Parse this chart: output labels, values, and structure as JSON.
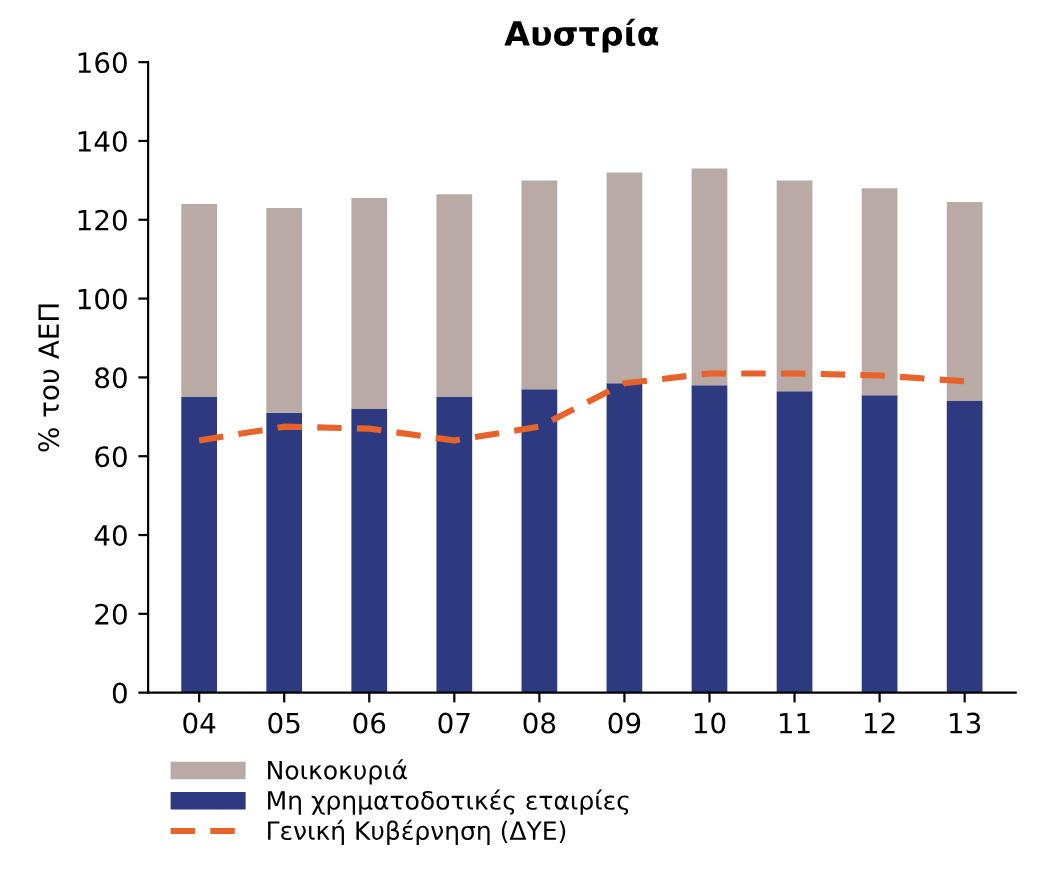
{
  "chart_data": {
    "type": "bar",
    "title": "Αυστρία",
    "ylabel": "% του ΑΕΠ",
    "stacked": true,
    "categories": [
      "04",
      "05",
      "06",
      "07",
      "08",
      "09",
      "10",
      "11",
      "12",
      "13"
    ],
    "series": [
      {
        "name": "Μη χρηματοδοτικές εταιρίες",
        "color": "#2e3a80",
        "values": [
          75,
          71,
          72,
          75,
          77,
          78.5,
          78,
          76.5,
          75.5,
          74
        ]
      },
      {
        "name": "Νοικοκυριά",
        "color": "#b9aaa5",
        "values": [
          49,
          52,
          53.5,
          51.5,
          53,
          53.5,
          55,
          53.5,
          52.5,
          50.5
        ]
      },
      {
        "name": "Γενική Κυβέρνηση (ΔΥΕ)",
        "color": "#e8632a",
        "type": "line",
        "line_style": "dashed",
        "values": [
          64,
          67.5,
          67,
          64,
          67.5,
          78.5,
          81,
          81,
          80.5,
          79
        ]
      }
    ],
    "ylim": [
      0,
      160
    ],
    "yticks": [
      0,
      20,
      40,
      60,
      80,
      100,
      120,
      140,
      160
    ],
    "grid": false,
    "legend": "bottom"
  }
}
